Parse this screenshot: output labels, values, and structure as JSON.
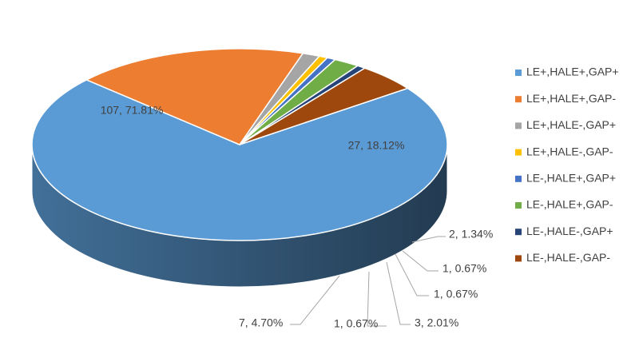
{
  "chart_data": {
    "type": "pie",
    "style": "3d",
    "categories": [
      "LE+,HALE+,GAP+",
      "LE+,HALE+,GAP-",
      "LE+,HALE-,GAP+",
      "LE+,HALE-,GAP-",
      "LE-,HALE+,GAP+",
      "LE-,HALE+,GAP-",
      "LE-,HALE-,GAP+",
      "LE-,HALE-,GAP-"
    ],
    "values": [
      107,
      27,
      2,
      1,
      1,
      3,
      1,
      7
    ],
    "percentages": [
      71.81,
      18.12,
      1.34,
      0.67,
      0.67,
      2.01,
      0.67,
      4.7
    ],
    "data_labels": [
      "107, 71.81%",
      "27, 18.12%",
      "2, 1.34%",
      "1, 0.67%",
      "1, 0.67%",
      "3, 2.01%",
      "1, 0.67%",
      "7, 4.70%"
    ],
    "colors": [
      "#5B9BD5",
      "#ED7D31",
      "#A5A5A5",
      "#FFC000",
      "#4472C4",
      "#70AD47",
      "#264478",
      "#9E480E"
    ],
    "legend_position": "right"
  }
}
